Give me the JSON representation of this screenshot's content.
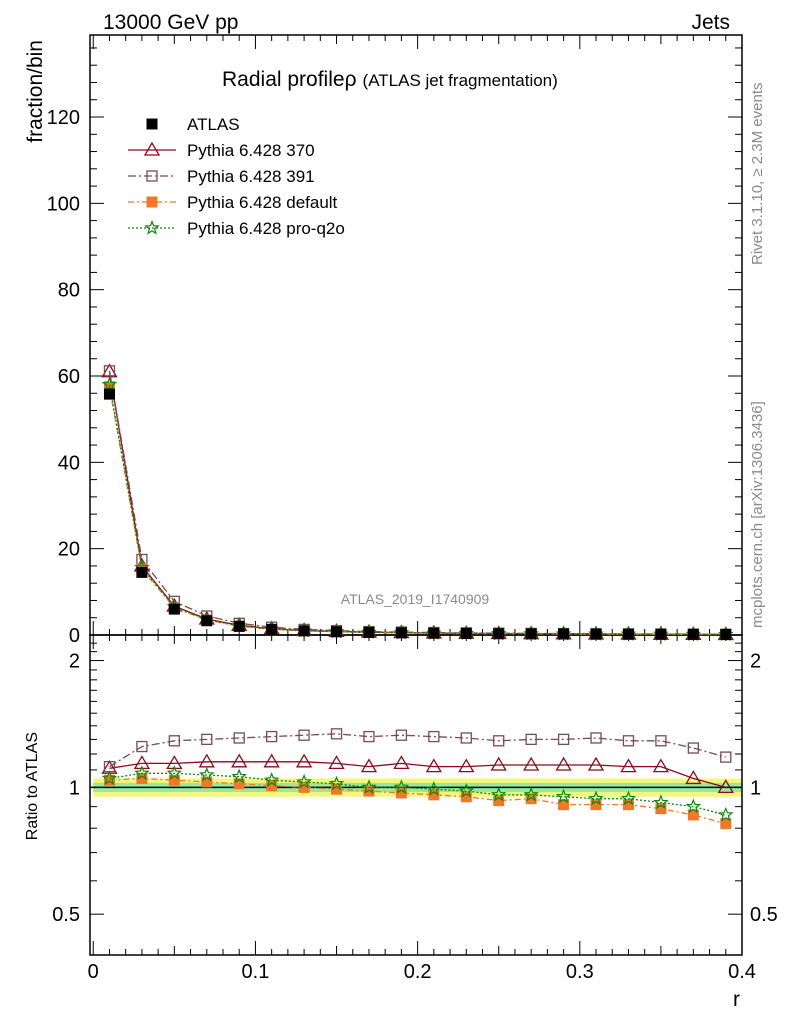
{
  "header": {
    "left": "13000 GeV pp",
    "right": "Jets"
  },
  "side": {
    "rivet": "Rivet 3.1.10, ≥ 2.3M events",
    "mcplots": "mcplots.cern.ch [arXiv:1306.3436]"
  },
  "chart_data": {
    "type": "line",
    "title": "Radial profile",
    "title_symbol": "ρ",
    "subtitle": "(ATLAS jet fragmentation)",
    "watermark": "ATLAS_2019_I1740909",
    "xlabel": "r",
    "ylabel": "fraction/bin",
    "ratio_ylabel": "Ratio to ATLAS",
    "xlim": [
      -0.002,
      0.4
    ],
    "ylim": [
      0,
      139
    ],
    "ratio_ylim": [
      0.4,
      2.3
    ],
    "ratio_scale": "log",
    "x_ticks": [
      "0",
      "0.1",
      "0.2",
      "0.3",
      "0.4"
    ],
    "y_ticks": [
      "0",
      "20",
      "40",
      "60",
      "80",
      "100",
      "120"
    ],
    "ratio_ticks": [
      "0.5",
      "1",
      "2"
    ],
    "legend_position": "top-left",
    "x": [
      0.01,
      0.03,
      0.05,
      0.07,
      0.09,
      0.11,
      0.13,
      0.15,
      0.17,
      0.19,
      0.21,
      0.23,
      0.25,
      0.27,
      0.29,
      0.31,
      0.33,
      0.35,
      0.37,
      0.39
    ],
    "series": [
      {
        "name": "ATLAS",
        "color": "#000000",
        "marker": "square-filled",
        "dash": "",
        "values": [
          55.8,
          14.5,
          6.0,
          3.3,
          2.0,
          1.3,
          0.95,
          0.75,
          0.6,
          0.5,
          0.42,
          0.36,
          0.31,
          0.27,
          0.24,
          0.21,
          0.19,
          0.17,
          0.15,
          0.13
        ],
        "ratio": [
          1,
          1,
          1,
          1,
          1,
          1,
          1,
          1,
          1,
          1,
          1,
          1,
          1,
          1,
          1,
          1,
          1,
          1,
          1,
          1
        ]
      },
      {
        "name": "Pythia 6.428 370",
        "color": "#8b0a1e",
        "marker": "triangle-open",
        "dash": "",
        "values": [
          61.0,
          16.0,
          6.7,
          3.7,
          2.25,
          1.45,
          1.05,
          0.85,
          0.67,
          0.56,
          0.47,
          0.4,
          0.35,
          0.3,
          0.27,
          0.24,
          0.21,
          0.19,
          0.16,
          0.13
        ],
        "ratio": [
          1.11,
          1.14,
          1.14,
          1.15,
          1.15,
          1.15,
          1.15,
          1.14,
          1.12,
          1.14,
          1.12,
          1.12,
          1.13,
          1.13,
          1.13,
          1.13,
          1.12,
          1.12,
          1.05,
          1.0
        ]
      },
      {
        "name": "Pythia 6.428 391",
        "color": "#7a4a55",
        "marker": "square-open",
        "dash": "8,3,2,3",
        "values": [
          61.2,
          17.5,
          7.8,
          4.4,
          2.7,
          1.8,
          1.3,
          1.0,
          0.8,
          0.68,
          0.57,
          0.49,
          0.42,
          0.37,
          0.33,
          0.29,
          0.26,
          0.23,
          0.2,
          0.16
        ],
        "ratio": [
          1.12,
          1.25,
          1.29,
          1.3,
          1.31,
          1.32,
          1.33,
          1.34,
          1.32,
          1.33,
          1.32,
          1.31,
          1.29,
          1.3,
          1.3,
          1.31,
          1.29,
          1.29,
          1.24,
          1.18
        ]
      },
      {
        "name": "Pythia 6.428 default",
        "color": "#f07828",
        "marker": "square-filled",
        "dash": "6,3,2,3",
        "values": [
          57.5,
          15.3,
          6.3,
          3.5,
          2.05,
          1.32,
          0.96,
          0.76,
          0.59,
          0.48,
          0.4,
          0.34,
          0.29,
          0.25,
          0.22,
          0.19,
          0.17,
          0.15,
          0.13,
          0.11
        ],
        "ratio": [
          1.04,
          1.05,
          1.04,
          1.03,
          1.02,
          1.01,
          1.0,
          0.99,
          0.98,
          0.97,
          0.96,
          0.95,
          0.93,
          0.94,
          0.91,
          0.91,
          0.91,
          0.89,
          0.86,
          0.82
        ]
      },
      {
        "name": "Pythia 6.428 pro-q2o",
        "color": "#0a8a0a",
        "marker": "star-open",
        "dash": "2,2",
        "values": [
          58.0,
          15.6,
          6.5,
          3.55,
          2.1,
          1.34,
          0.98,
          0.77,
          0.61,
          0.5,
          0.42,
          0.35,
          0.3,
          0.26,
          0.23,
          0.2,
          0.18,
          0.16,
          0.13,
          0.12
        ],
        "ratio": [
          1.05,
          1.08,
          1.08,
          1.07,
          1.06,
          1.04,
          1.03,
          1.02,
          1.0,
          1.0,
          0.99,
          0.98,
          0.96,
          0.96,
          0.95,
          0.94,
          0.94,
          0.92,
          0.9,
          0.86
        ]
      }
    ]
  }
}
